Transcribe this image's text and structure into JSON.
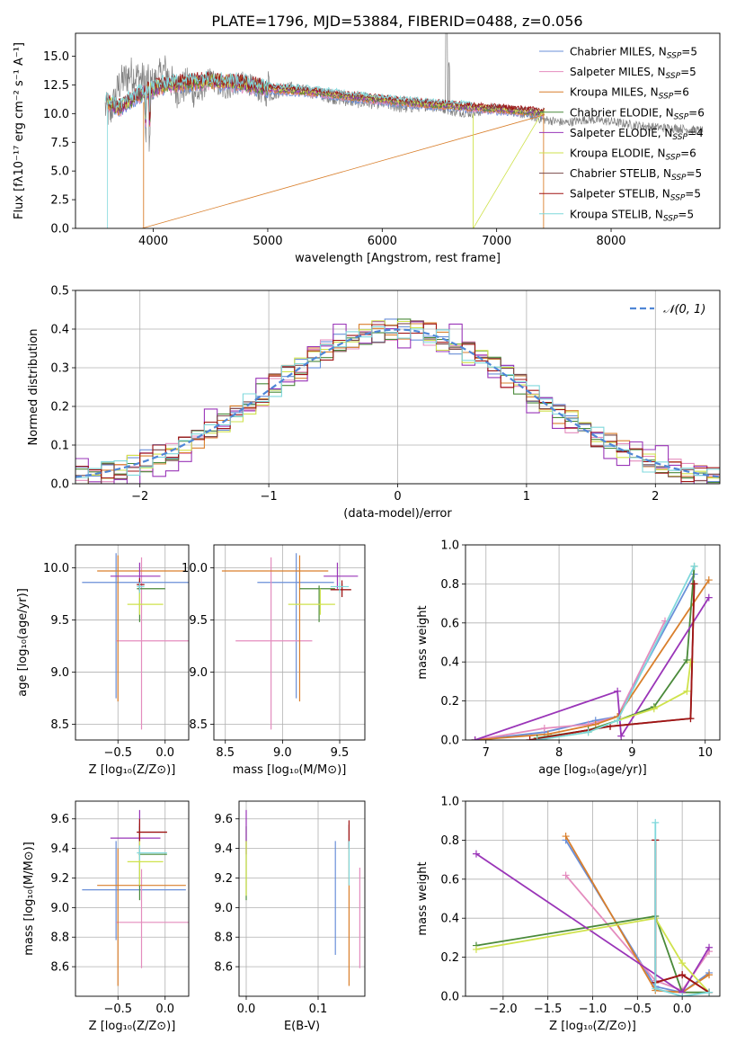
{
  "colors": {
    "s0": "#6a8fd8",
    "s1": "#e48cbe",
    "s2": "#d97f2c",
    "s3": "#4a8a3a",
    "s4": "#9a35b8",
    "s5": "#cfe24c",
    "s6": "#7a4a4a",
    "s7": "#a11414",
    "s8": "#7fd8dc",
    "data": "#808080",
    "normal": "#4f86d6"
  },
  "chart_data": [
    {
      "id": "spectrum",
      "type": "line",
      "title": "PLATE=1796, MJD=53884, FIBERID=0488, z=0.056",
      "xlabel": "wavelength [Angstrom, rest frame]",
      "ylabel": "Flux [fλ10⁻¹⁷ erg cm⁻² s⁻¹ A⁻¹]",
      "xlim": [
        3320,
        8950
      ],
      "ylim": [
        0,
        17
      ],
      "xticks": [
        4000,
        5000,
        6000,
        7000,
        8000
      ],
      "yticks": [
        0.0,
        2.5,
        5.0,
        7.5,
        10.0,
        12.5,
        15.0
      ],
      "legend_position": "top-right",
      "legend": [
        "Chabrier MILES, N_SSP=5",
        "Salpeter MILES, N_SSP=5",
        "Kroupa MILES, N_SSP=6",
        "Chabrier ELODIE, N_SSP=6",
        "Salpeter ELODIE, N_SSP=4",
        "Kroupa ELODIE, N_SSP=6",
        "Chabrier STELIB, N_SSP=5",
        "Salpeter STELIB, N_SSP=5",
        "Kroupa STELIB, N_SSP=5"
      ],
      "model_continuum": {
        "x": [
          3600,
          3700,
          3900,
          4100,
          4500,
          4800,
          5000,
          5400,
          5800,
          6200,
          6600,
          7000,
          7400
        ],
        "y": [
          11.0,
          10.5,
          11.8,
          12.5,
          12.9,
          12.6,
          12.2,
          11.9,
          11.4,
          11.0,
          10.7,
          10.4,
          10.1
        ]
      },
      "data_line": {
        "x": [
          3580,
          3620,
          3700,
          3800,
          3900,
          4000,
          4100,
          4200,
          4300,
          4400,
          4500,
          4600,
          4800,
          5000,
          5200,
          5400,
          5600,
          5800,
          6000,
          6200,
          6400,
          6600,
          6800,
          7000,
          7200,
          7400,
          7600,
          7800,
          8000,
          8200,
          8400,
          8600,
          8800
        ],
        "y": [
          10.5,
          9.8,
          12.5,
          13.5,
          13.0,
          12.5,
          13.8,
          12.0,
          12.5,
          11.6,
          13.2,
          12.0,
          12.8,
          11.5,
          12.3,
          11.8,
          11.3,
          11.0,
          10.9,
          10.5,
          10.8,
          10.2,
          10.0,
          10.6,
          10.0,
          9.5,
          9.2,
          9.5,
          9.3,
          9.0,
          8.8,
          8.7,
          8.5
        ]
      }
    },
    {
      "id": "residuals",
      "type": "line",
      "xlabel": "(data-model)/error",
      "ylabel": "Normed distribution",
      "xlim": [
        -2.5,
        2.5
      ],
      "ylim": [
        0,
        0.5
      ],
      "xticks": [
        -2,
        -1,
        0,
        1,
        2
      ],
      "yticks": [
        0.0,
        0.1,
        0.2,
        0.3,
        0.4,
        0.5
      ],
      "legend": [
        "𝒩(0, 1)"
      ],
      "legend_position": "top-right",
      "bin_width": 0.1
    },
    {
      "id": "age_vs_Z",
      "type": "scatter",
      "xlabel": "Z [log₁₀(Z/Z⊙)]",
      "ylabel": "age  [log₁₀(age/yr)]",
      "xlim": [
        -0.95,
        0.25
      ],
      "ylim": [
        8.35,
        10.22
      ],
      "xticks": [
        -0.5,
        0.0
      ],
      "yticks": [
        8.5,
        9.0,
        9.5,
        10.0
      ],
      "points": [
        {
          "c": "s0",
          "x": -0.52,
          "y": 9.86,
          "xe": [
            -0.88,
            0.25
          ],
          "ye": [
            8.75,
            10.14
          ]
        },
        {
          "c": "s1",
          "x": -0.25,
          "y": 9.3,
          "xe": [
            -0.52,
            0.25
          ],
          "ye": [
            8.45,
            10.1
          ]
        },
        {
          "c": "s2",
          "x": -0.5,
          "y": 9.97,
          "xe": [
            -0.72,
            0.22
          ],
          "ye": [
            8.72,
            10.12
          ]
        },
        {
          "c": "s3",
          "x": -0.27,
          "y": 9.8,
          "xe": [
            -0.3,
            0.0
          ],
          "ye": [
            9.48,
            9.83
          ]
        },
        {
          "c": "s4",
          "x": -0.27,
          "y": 9.92,
          "xe": [
            -0.58,
            -0.05
          ],
          "ye": [
            9.8,
            10.05
          ]
        },
        {
          "c": "s5",
          "x": -0.27,
          "y": 9.65,
          "xe": [
            -0.4,
            -0.02
          ],
          "ye": [
            9.55,
            9.8
          ]
        },
        {
          "c": "s6",
          "x": -0.27,
          "y": 9.84,
          "xe": [
            -0.3,
            -0.22
          ],
          "ye": [
            9.78,
            9.88
          ]
        },
        {
          "c": "s7",
          "x": -0.27,
          "y": 9.84,
          "xe": [
            -0.3,
            -0.22
          ],
          "ye": [
            9.78,
            9.9
          ]
        },
        {
          "c": "s8",
          "x": -0.27,
          "y": 9.82,
          "xe": [
            -0.3,
            -0.22
          ],
          "ye": [
            9.76,
            9.86
          ]
        }
      ]
    },
    {
      "id": "age_vs_mass",
      "type": "scatter",
      "xlabel": "mass [log₁₀(M/M⊙)]",
      "ylabel": "",
      "xlim": [
        8.4,
        9.72
      ],
      "ylim": [
        8.35,
        10.22
      ],
      "xticks": [
        8.5,
        9.0,
        9.5
      ],
      "yticks": [
        8.5,
        9.0,
        9.5,
        10.0
      ],
      "points": [
        {
          "c": "s0",
          "x": 9.12,
          "y": 9.86,
          "xe": [
            8.78,
            9.45
          ],
          "ye": [
            8.75,
            10.14
          ]
        },
        {
          "c": "s1",
          "x": 8.9,
          "y": 9.3,
          "xe": [
            8.59,
            9.26
          ],
          "ye": [
            8.45,
            10.1
          ]
        },
        {
          "c": "s2",
          "x": 9.15,
          "y": 9.97,
          "xe": [
            8.47,
            9.4
          ],
          "ye": [
            8.72,
            10.12
          ]
        },
        {
          "c": "s3",
          "x": 9.32,
          "y": 9.8,
          "xe": [
            9.15,
            9.46
          ],
          "ye": [
            9.48,
            9.83
          ]
        },
        {
          "c": "s4",
          "x": 9.48,
          "y": 9.92,
          "xe": [
            9.36,
            9.66
          ],
          "ye": [
            9.8,
            10.05
          ]
        },
        {
          "c": "s5",
          "x": 9.33,
          "y": 9.65,
          "xe": [
            9.05,
            9.46
          ],
          "ye": [
            9.55,
            9.8
          ]
        },
        {
          "c": "s6",
          "x": 9.52,
          "y": 9.79,
          "xe": [
            9.42,
            9.6
          ],
          "ye": [
            9.72,
            9.85
          ]
        },
        {
          "c": "s7",
          "x": 9.52,
          "y": 9.79,
          "xe": [
            9.42,
            9.6
          ],
          "ye": [
            9.72,
            9.88
          ]
        },
        {
          "c": "s8",
          "x": 9.5,
          "y": 9.82,
          "xe": [
            9.42,
            9.58
          ],
          "ye": [
            9.76,
            9.86
          ]
        }
      ]
    },
    {
      "id": "mw_vs_age",
      "type": "line",
      "xlabel": "age  [log₁₀(age/yr)]",
      "ylabel": "mass weight",
      "xlim": [
        6.72,
        10.2
      ],
      "ylim": [
        0,
        1
      ],
      "xticks": [
        7,
        8,
        9,
        10
      ],
      "yticks": [
        0.0,
        0.2,
        0.4,
        0.6,
        0.8,
        1.0
      ],
      "series": [
        {
          "c": "s0",
          "x": [
            6.85,
            7.8,
            8.5,
            8.8,
            9.85
          ],
          "y": [
            0.0,
            0.04,
            0.1,
            0.12,
            0.85
          ]
        },
        {
          "c": "s1",
          "x": [
            6.85,
            7.8,
            8.4,
            8.8,
            9.45
          ],
          "y": [
            0.0,
            0.06,
            0.08,
            0.12,
            0.61
          ]
        },
        {
          "c": "s2",
          "x": [
            6.85,
            7.85,
            8.5,
            8.8,
            10.05
          ],
          "y": [
            0.0,
            0.03,
            0.08,
            0.12,
            0.82
          ]
        },
        {
          "c": "s3",
          "x": [
            7.7,
            8.4,
            8.8,
            9.3,
            9.75,
            9.85
          ],
          "y": [
            0.01,
            0.05,
            0.1,
            0.17,
            0.41,
            0.89
          ]
        },
        {
          "c": "s4",
          "x": [
            6.85,
            8.8,
            8.85,
            10.05
          ],
          "y": [
            0.0,
            0.25,
            0.02,
            0.73
          ]
        },
        {
          "c": "s5",
          "x": [
            7.7,
            8.4,
            8.8,
            9.3,
            9.75,
            9.8
          ],
          "y": [
            0.0,
            0.04,
            0.1,
            0.16,
            0.25,
            0.4
          ]
        },
        {
          "c": "s6",
          "x": [
            7.6,
            8.7,
            9.8,
            9.85
          ],
          "y": [
            0.0,
            0.07,
            0.11,
            0.8
          ]
        },
        {
          "c": "s7",
          "x": [
            7.6,
            8.7,
            9.8,
            9.85
          ],
          "y": [
            0.0,
            0.07,
            0.11,
            0.8
          ]
        },
        {
          "c": "s8",
          "x": [
            7.7,
            8.4,
            8.8,
            9.85
          ],
          "y": [
            0.0,
            0.04,
            0.1,
            0.89
          ]
        }
      ]
    },
    {
      "id": "mass_vs_Z",
      "type": "scatter",
      "xlabel": "Z [log₁₀(Z/Z⊙)]",
      "ylabel": "mass [log₁₀(M/M⊙)]",
      "xlim": [
        -0.95,
        0.25
      ],
      "ylim": [
        8.4,
        9.72
      ],
      "xticks": [
        -0.5,
        0.0
      ],
      "yticks": [
        8.6,
        8.8,
        9.0,
        9.2,
        9.4,
        9.6
      ],
      "points": [
        {
          "c": "s0",
          "x": -0.52,
          "y": 9.12,
          "xe": [
            -0.88,
            0.22
          ],
          "ye": [
            8.78,
            9.45
          ]
        },
        {
          "c": "s1",
          "x": -0.25,
          "y": 8.9,
          "xe": [
            -0.52,
            0.25
          ],
          "ye": [
            8.59,
            9.26
          ]
        },
        {
          "c": "s2",
          "x": -0.5,
          "y": 9.15,
          "xe": [
            -0.72,
            0.22
          ],
          "ye": [
            8.47,
            9.4
          ]
        },
        {
          "c": "s3",
          "x": -0.27,
          "y": 9.36,
          "xe": [
            -0.28,
            0.02
          ],
          "ye": [
            9.05,
            9.55
          ]
        },
        {
          "c": "s4",
          "x": -0.27,
          "y": 9.47,
          "xe": [
            -0.58,
            -0.05
          ],
          "ye": [
            9.36,
            9.66
          ]
        },
        {
          "c": "s5",
          "x": -0.27,
          "y": 9.31,
          "xe": [
            -0.4,
            -0.02
          ],
          "ye": [
            9.15,
            9.45
          ]
        },
        {
          "c": "s6",
          "x": -0.27,
          "y": 9.51,
          "xe": [
            -0.3,
            0.02
          ],
          "ye": [
            9.45,
            9.57
          ]
        },
        {
          "c": "s7",
          "x": -0.27,
          "y": 9.51,
          "xe": [
            -0.3,
            0.02
          ],
          "ye": [
            9.45,
            9.6
          ]
        },
        {
          "c": "s8",
          "x": -0.27,
          "y": 9.37,
          "xe": [
            -0.3,
            0.02
          ],
          "ye": [
            9.32,
            9.42
          ]
        }
      ]
    },
    {
      "id": "mass_vs_ebv",
      "type": "scatter",
      "xlabel": "E(B-V)",
      "ylabel": "",
      "xlim": [
        -0.01,
        0.165
      ],
      "ylim": [
        8.4,
        9.72
      ],
      "xticks": [
        0.0,
        0.1
      ],
      "yticks": [
        8.6,
        8.8,
        9.0,
        9.2,
        9.4,
        9.6
      ],
      "points": [
        {
          "c": "s0",
          "x": 0.124,
          "y": 9.12,
          "xe": [
            0.124,
            0.124
          ],
          "ye": [
            8.68,
            9.45
          ]
        },
        {
          "c": "s1",
          "x": 0.158,
          "y": 8.92,
          "xe": [
            0.158,
            0.158
          ],
          "ye": [
            8.59,
            9.27
          ]
        },
        {
          "c": "s2",
          "x": 0.143,
          "y": 9.15,
          "xe": [
            0.143,
            0.143
          ],
          "ye": [
            8.47,
            9.4
          ]
        },
        {
          "c": "s3",
          "x": 0.0,
          "y": 9.36,
          "xe": [
            0.0,
            0.0
          ],
          "ye": [
            9.05,
            9.55
          ]
        },
        {
          "c": "s4",
          "x": 0.0,
          "y": 9.5,
          "xe": [
            0.0,
            0.0
          ],
          "ye": [
            9.36,
            9.66
          ]
        },
        {
          "c": "s5",
          "x": 0.0,
          "y": 9.25,
          "xe": [
            0.0,
            0.0
          ],
          "ye": [
            9.08,
            9.45
          ]
        },
        {
          "c": "s6",
          "x": 0.143,
          "y": 9.5,
          "xe": [
            0.143,
            0.143
          ],
          "ye": [
            9.4,
            9.56
          ]
        },
        {
          "c": "s7",
          "x": 0.143,
          "y": 9.5,
          "xe": [
            0.143,
            0.143
          ],
          "ye": [
            9.4,
            9.59
          ]
        },
        {
          "c": "s8",
          "x": 0.143,
          "y": 9.3,
          "xe": [
            0.143,
            0.143
          ],
          "ye": [
            9.15,
            9.45
          ]
        }
      ]
    },
    {
      "id": "mw_vs_Z",
      "type": "line",
      "xlabel": "Z [log₁₀(Z/Z⊙)]",
      "ylabel": "mass weight",
      "xlim": [
        -2.42,
        0.42
      ],
      "ylim": [
        0,
        1
      ],
      "xticks": [
        -2.0,
        -1.5,
        -1.0,
        -0.5,
        0.0
      ],
      "yticks": [
        0.0,
        0.2,
        0.4,
        0.6,
        0.8,
        1.0
      ],
      "series": [
        {
          "c": "s0",
          "x": [
            -1.3,
            -0.3,
            0.0,
            0.3
          ],
          "y": [
            0.8,
            0.05,
            0.02,
            0.12
          ]
        },
        {
          "c": "s1",
          "x": [
            -1.3,
            -0.3,
            0.0,
            0.3
          ],
          "y": [
            0.62,
            0.08,
            0.03,
            0.23
          ]
        },
        {
          "c": "s2",
          "x": [
            -1.3,
            -0.3,
            0.0,
            0.3
          ],
          "y": [
            0.82,
            0.03,
            0.02,
            0.11
          ]
        },
        {
          "c": "s3",
          "x": [
            -2.3,
            -0.3,
            0.0,
            0.3
          ],
          "y": [
            0.26,
            0.41,
            0.02,
            0.02
          ]
        },
        {
          "c": "s4",
          "x": [
            -2.3,
            0.0,
            0.3
          ],
          "y": [
            0.73,
            0.02,
            0.25
          ]
        },
        {
          "c": "s5",
          "x": [
            -2.3,
            -0.3,
            0.0,
            0.3
          ],
          "y": [
            0.24,
            0.4,
            0.17,
            0.02
          ]
        },
        {
          "c": "s6",
          "x": [
            -0.3,
            -0.3,
            0.0,
            0.3
          ],
          "y": [
            0.8,
            0.07,
            0.11,
            0.02
          ]
        },
        {
          "c": "s7",
          "x": [
            -0.3,
            -0.3,
            0.0,
            0.3
          ],
          "y": [
            0.8,
            0.07,
            0.11,
            0.02
          ]
        },
        {
          "c": "s8",
          "x": [
            -0.3,
            -0.3,
            0.0,
            0.3
          ],
          "y": [
            0.89,
            0.04,
            0.0,
            0.02
          ]
        }
      ]
    }
  ]
}
